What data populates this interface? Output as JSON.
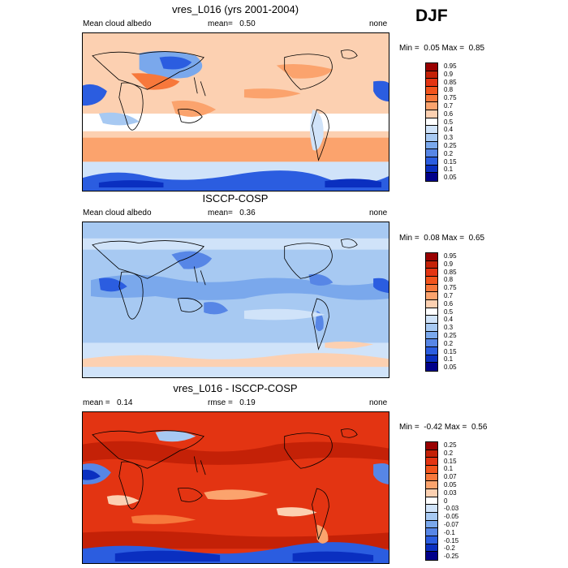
{
  "header": {
    "season": "DJF"
  },
  "panels": [
    {
      "title": "vres_L016 (yrs 2001-2004)",
      "left_label": "Mean cloud albedo",
      "center_label": "mean=",
      "center_value": "0.50",
      "right_label": "none",
      "minmax": {
        "min_label": "Min =",
        "min": "0.05",
        "max_label": "Max =",
        "max": "0.85"
      },
      "levels": [
        "0.95",
        "0.9",
        "0.85",
        "0.8",
        "0.75",
        "0.7",
        "0.6",
        "0.5",
        "0.4",
        "0.3",
        "0.25",
        "0.2",
        "0.15",
        "0.1",
        "0.05"
      ],
      "colors": [
        "#990000",
        "#c42107",
        "#e33412",
        "#f2541c",
        "#f7783b",
        "#fba36d",
        "#fcd0b1",
        "#ffffff",
        "#d0e3f9",
        "#a7c9f2",
        "#7aa8ec",
        "#5786e6",
        "#2b5de0",
        "#0a2fc0",
        "#00008a"
      ]
    },
    {
      "title": "ISCCP-COSP",
      "left_label": "Mean cloud albedo",
      "center_label": "mean=",
      "center_value": "0.36",
      "right_label": "none",
      "minmax": {
        "min_label": "Min =",
        "min": "0.08",
        "max_label": "Max =",
        "max": "0.65"
      },
      "levels": [
        "0.95",
        "0.9",
        "0.85",
        "0.8",
        "0.75",
        "0.7",
        "0.6",
        "0.5",
        "0.4",
        "0.3",
        "0.25",
        "0.2",
        "0.15",
        "0.1",
        "0.05"
      ],
      "colors": [
        "#990000",
        "#c42107",
        "#e33412",
        "#f2541c",
        "#f7783b",
        "#fba36d",
        "#fcd0b1",
        "#ffffff",
        "#d0e3f9",
        "#a7c9f2",
        "#7aa8ec",
        "#5786e6",
        "#2b5de0",
        "#0a2fc0",
        "#00008a"
      ]
    },
    {
      "title": "vres_L016 - ISCCP-COSP",
      "left_label": "mean =",
      "left_value": "0.14",
      "center_label": "rmse =",
      "center_value": "0.19",
      "right_label": "none",
      "minmax": {
        "min_label": "Min =",
        "min": "-0.42",
        "max_label": "Max =",
        "max": "0.56"
      },
      "levels": [
        "0.25",
        "0.2",
        "0.15",
        "0.1",
        "0.07",
        "0.05",
        "0.03",
        "0",
        "-0.03",
        "-0.05",
        "-0.07",
        "-0.1",
        "-0.15",
        "-0.2",
        "-0.25"
      ],
      "colors": [
        "#990000",
        "#c42107",
        "#e33412",
        "#f2541c",
        "#f7783b",
        "#fba36d",
        "#fcd0b1",
        "#ffffff",
        "#d0e3f9",
        "#a7c9f2",
        "#7aa8ec",
        "#5786e6",
        "#2b5de0",
        "#0a2fc0",
        "#00008a"
      ]
    }
  ],
  "chart_data": [
    {
      "type": "heatmap",
      "title": "vres_L016 (yrs 2001-2004)",
      "variable": "Mean cloud albedo",
      "units": "none",
      "mean": 0.5,
      "min": 0.05,
      "max": 0.85,
      "colorbar_levels": [
        0.05,
        0.1,
        0.15,
        0.2,
        0.25,
        0.3,
        0.4,
        0.5,
        0.6,
        0.7,
        0.75,
        0.8,
        0.85,
        0.9,
        0.95
      ],
      "season": "DJF"
    },
    {
      "type": "heatmap",
      "title": "ISCCP-COSP",
      "variable": "Mean cloud albedo",
      "units": "none",
      "mean": 0.36,
      "min": 0.08,
      "max": 0.65,
      "colorbar_levels": [
        0.05,
        0.1,
        0.15,
        0.2,
        0.25,
        0.3,
        0.4,
        0.5,
        0.6,
        0.7,
        0.75,
        0.8,
        0.85,
        0.9,
        0.95
      ],
      "season": "DJF"
    },
    {
      "type": "heatmap",
      "title": "vres_L016 - ISCCP-COSP",
      "units": "none",
      "mean": 0.14,
      "rmse": 0.19,
      "min": -0.42,
      "max": 0.56,
      "colorbar_levels": [
        -0.25,
        -0.2,
        -0.15,
        -0.1,
        -0.07,
        -0.05,
        -0.03,
        0,
        0.03,
        0.05,
        0.07,
        0.1,
        0.15,
        0.2,
        0.25
      ],
      "season": "DJF"
    }
  ]
}
